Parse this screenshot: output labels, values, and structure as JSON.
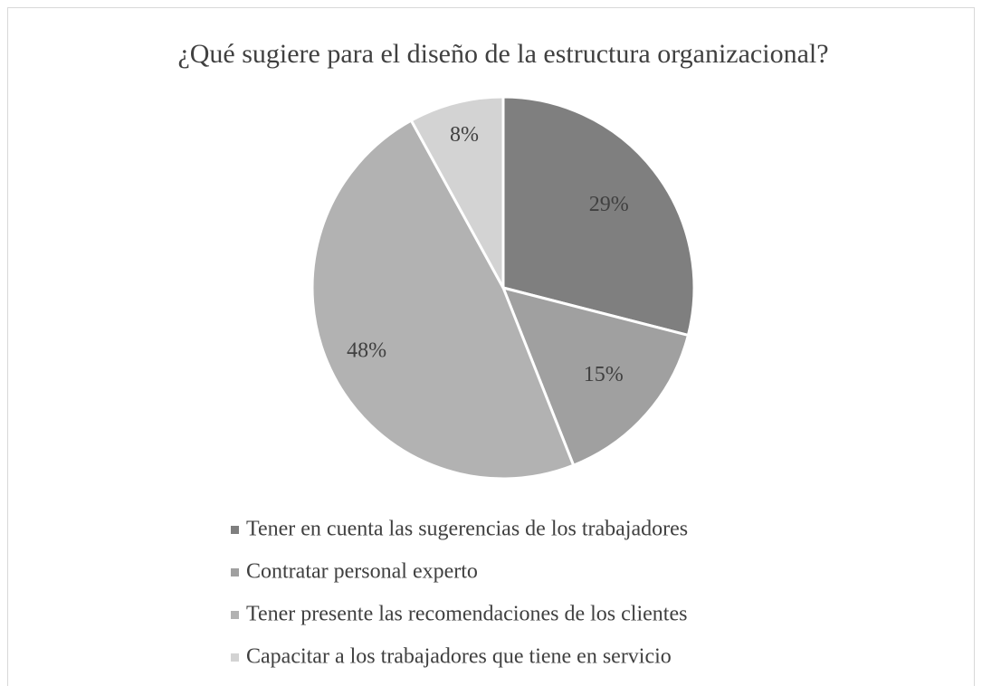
{
  "chart_data": {
    "type": "pie",
    "title": "¿Qué sugiere para el diseño de la estructura organizacional?",
    "categories": [
      "Tener en cuenta las sugerencias de los trabajadores",
      "Contratar personal experto",
      "Tener presente las recomendaciones de los clientes",
      "Capacitar a los trabajadores que tiene en servicio"
    ],
    "values": [
      29,
      15,
      48,
      8
    ],
    "value_labels": [
      "29%",
      "15%",
      "48%",
      "8%"
    ],
    "colors": [
      "#7f7f7f",
      "#a0a0a0",
      "#b2b2b2",
      "#d3d3d3"
    ]
  }
}
